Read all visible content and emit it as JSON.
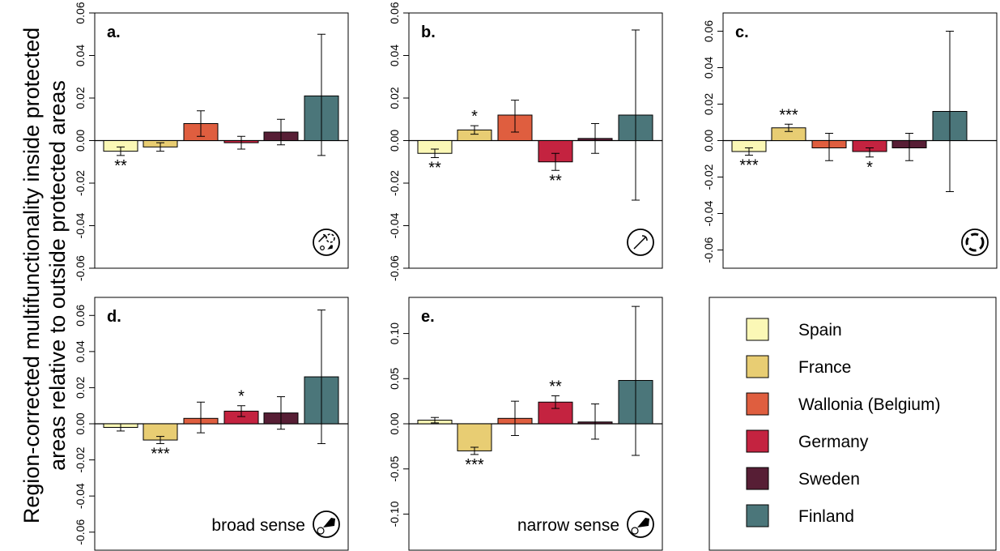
{
  "y_axis_label_line1": "Region-corrected multifunctionality inside protected",
  "y_axis_label_line2": "areas relative to outside protected areas",
  "colors": {
    "Spain": "#fbf8b6",
    "France": "#e8cd73",
    "Wallonia (Belgium)": "#df5e3f",
    "Germany": "#c42340",
    "Sweden": "#571e35",
    "Finland": "#4b767a"
  },
  "legend": {
    "entries": [
      {
        "label": "Spain",
        "color": "#fbf8b6"
      },
      {
        "label": "France",
        "color": "#e8cd73"
      },
      {
        "label": "Wallonia (Belgium)",
        "color": "#df5e3f"
      },
      {
        "label": "Germany",
        "color": "#c42340"
      },
      {
        "label": "Sweden",
        "color": "#571e35"
      },
      {
        "label": "Finland",
        "color": "#4b767a"
      }
    ]
  },
  "chart_data": [
    {
      "type": "bar",
      "panel_label": "a.",
      "sense_label": "",
      "icon": "combined-icon",
      "categories": [
        "Spain",
        "France",
        "Wallonia (Belgium)",
        "Germany",
        "Sweden",
        "Finland"
      ],
      "values": [
        -0.005,
        -0.003,
        0.008,
        -0.001,
        0.004,
        0.021
      ],
      "error_low": [
        -0.007,
        -0.005,
        0.002,
        -0.004,
        -0.002,
        -0.007
      ],
      "error_high": [
        -0.003,
        -0.001,
        0.014,
        0.002,
        0.01,
        0.05
      ],
      "significance": [
        "**",
        "",
        "",
        "",
        "",
        ""
      ],
      "ylim": [
        -0.06,
        0.06
      ],
      "yticks": [
        "-0.06",
        "-0.04",
        "-0.02",
        "0.00",
        "0.02",
        "0.04",
        "0.06"
      ]
    },
    {
      "type": "bar",
      "panel_label": "b.",
      "sense_label": "",
      "icon": "pickaxe-icon",
      "categories": [
        "Spain",
        "France",
        "Wallonia (Belgium)",
        "Germany",
        "Sweden",
        "Finland"
      ],
      "values": [
        -0.006,
        0.005,
        0.012,
        -0.01,
        0.001,
        0.012
      ],
      "error_low": [
        -0.008,
        0.003,
        0.004,
        -0.014,
        -0.006,
        -0.028
      ],
      "error_high": [
        -0.004,
        0.007,
        0.019,
        -0.006,
        0.008,
        0.052
      ],
      "significance": [
        "**",
        "*",
        "",
        "**",
        "",
        ""
      ],
      "ylim": [
        -0.06,
        0.06
      ],
      "yticks": [
        "-0.06",
        "-0.04",
        "-0.02",
        "0.00",
        "0.02",
        "0.04",
        "0.06"
      ]
    },
    {
      "type": "bar",
      "panel_label": "c.",
      "sense_label": "",
      "icon": "nutrient-cycle-icon",
      "categories": [
        "Spain",
        "France",
        "Wallonia (Belgium)",
        "Germany",
        "Sweden",
        "Finland"
      ],
      "values": [
        -0.006,
        0.007,
        -0.004,
        -0.006,
        -0.004,
        0.016
      ],
      "error_low": [
        -0.008,
        0.005,
        -0.011,
        -0.009,
        -0.011,
        -0.028
      ],
      "error_high": [
        -0.004,
        0.009,
        0.004,
        -0.004,
        0.004,
        0.06
      ],
      "significance": [
        "***",
        "***",
        "",
        "*",
        "",
        ""
      ],
      "ylim": [
        -0.07,
        0.07
      ],
      "yticks": [
        "-0.06",
        "-0.04",
        "-0.02",
        "0.00",
        "0.02",
        "0.04",
        "0.06"
      ]
    },
    {
      "type": "bar",
      "panel_label": "d.",
      "sense_label": "broad sense",
      "icon": "bird-flower-icon",
      "categories": [
        "Spain",
        "France",
        "Wallonia (Belgium)",
        "Germany",
        "Sweden",
        "Finland"
      ],
      "values": [
        -0.002,
        -0.009,
        0.003,
        0.007,
        0.006,
        0.026
      ],
      "error_low": [
        -0.004,
        -0.011,
        -0.005,
        0.004,
        -0.003,
        -0.011
      ],
      "error_high": [
        0.0,
        -0.007,
        0.012,
        0.01,
        0.015,
        0.063
      ],
      "significance": [
        "",
        "***",
        "",
        "*",
        "",
        ""
      ],
      "ylim": [
        -0.07,
        0.07
      ],
      "yticks": [
        "-0.06",
        "-0.04",
        "-0.02",
        "0.00",
        "0.02",
        "0.04",
        "0.06"
      ]
    },
    {
      "type": "bar",
      "panel_label": "e.",
      "sense_label": "narrow sense",
      "icon": "bird-flower-icon",
      "categories": [
        "Spain",
        "France",
        "Wallonia (Belgium)",
        "Germany",
        "Sweden",
        "Finland"
      ],
      "values": [
        0.004,
        -0.03,
        0.006,
        0.024,
        0.002,
        0.048
      ],
      "error_low": [
        0.001,
        -0.034,
        -0.013,
        0.017,
        -0.017,
        -0.035
      ],
      "error_high": [
        0.007,
        -0.026,
        0.025,
        0.031,
        0.022,
        0.13
      ],
      "significance": [
        "",
        "***",
        "",
        "**",
        "",
        ""
      ],
      "ylim": [
        -0.14,
        0.14
      ],
      "yticks": [
        "-0.10",
        "-0.05",
        "0.00",
        "0.05",
        "0.10"
      ]
    }
  ]
}
